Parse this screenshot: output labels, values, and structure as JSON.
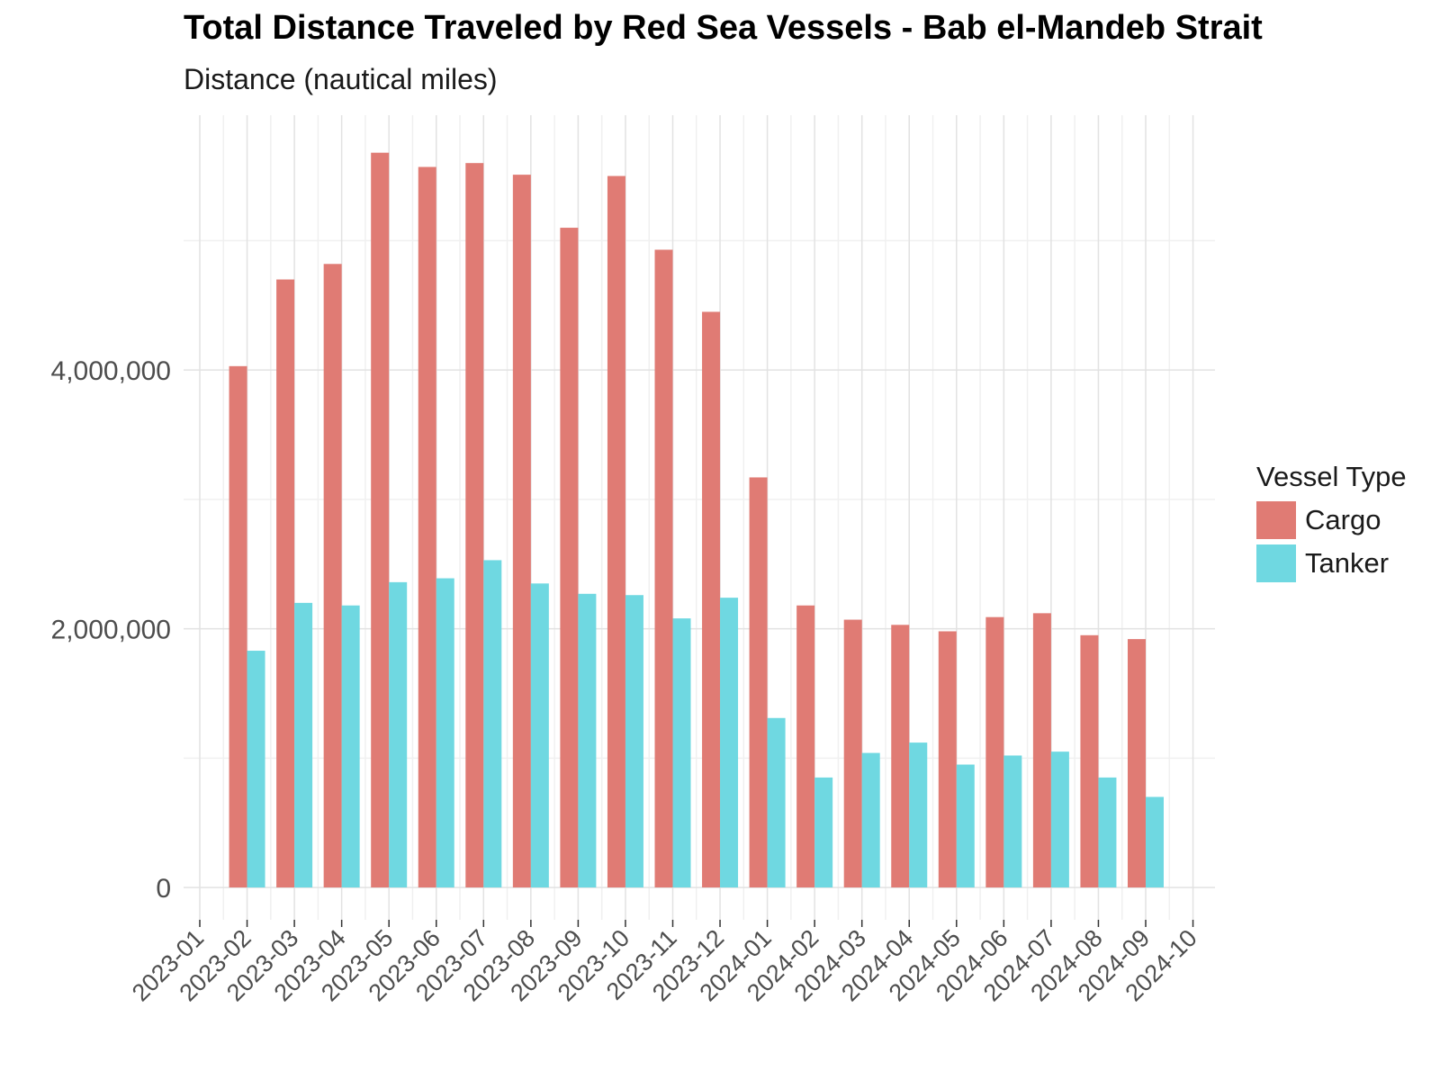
{
  "chart_data": {
    "type": "bar",
    "title": "Total Distance Traveled by Red Sea Vessels - Bab el-Mandeb Strait",
    "subtitle": "Distance (nautical miles)",
    "xlabel": "",
    "ylabel": "",
    "x_tick_labels": [
      "2023-01",
      "2023-02",
      "2023-03",
      "2023-04",
      "2023-05",
      "2023-06",
      "2023-07",
      "2023-08",
      "2023-09",
      "2023-10",
      "2023-11",
      "2023-12",
      "2024-01",
      "2024-02",
      "2024-03",
      "2024-04",
      "2024-05",
      "2024-06",
      "2024-07",
      "2024-08",
      "2024-09",
      "2024-10"
    ],
    "categories": [
      "2023-02",
      "2023-03",
      "2023-04",
      "2023-05",
      "2023-06",
      "2023-07",
      "2023-08",
      "2023-09",
      "2023-10",
      "2023-11",
      "2023-12",
      "2024-01",
      "2024-02",
      "2024-03",
      "2024-04",
      "2024-05",
      "2024-06",
      "2024-07",
      "2024-08",
      "2024-09"
    ],
    "series": [
      {
        "name": "Cargo",
        "color": "#e07b74",
        "values": [
          4030000,
          4700000,
          4820000,
          5680000,
          5570000,
          5600000,
          5510000,
          5100000,
          5500000,
          4930000,
          4450000,
          3170000,
          2180000,
          2070000,
          2030000,
          1980000,
          2090000,
          2120000,
          1950000,
          1920000
        ]
      },
      {
        "name": "Tanker",
        "color": "#6fd8e1",
        "values": [
          1830000,
          2200000,
          2180000,
          2360000,
          2390000,
          2530000,
          2350000,
          2270000,
          2260000,
          2080000,
          2240000,
          1310000,
          850000,
          1040000,
          1120000,
          950000,
          1020000,
          1050000,
          850000,
          700000
        ]
      }
    ],
    "y_ticks": [
      0,
      2000000,
      4000000
    ],
    "y_tick_labels": [
      "0",
      "2,000,000",
      "4,000,000"
    ],
    "ylim": [
      -250000,
      5970000
    ],
    "grid": true,
    "legend": {
      "title": "Vessel Type",
      "position": "right"
    }
  }
}
